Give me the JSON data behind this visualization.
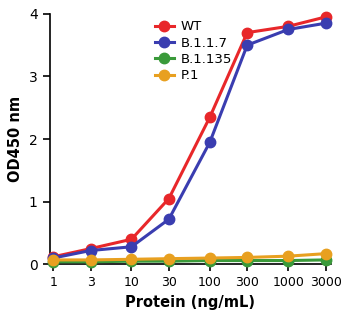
{
  "x_values": [
    1,
    3,
    10,
    30,
    100,
    300,
    1000,
    3000
  ],
  "WT": [
    0.12,
    0.25,
    0.4,
    1.05,
    2.35,
    3.7,
    3.8,
    3.95
  ],
  "B117": [
    0.1,
    0.22,
    0.28,
    0.72,
    1.95,
    3.5,
    3.75,
    3.85
  ],
  "B1135": [
    0.04,
    0.04,
    0.05,
    0.05,
    0.06,
    0.06,
    0.06,
    0.07
  ],
  "P1": [
    0.07,
    0.07,
    0.08,
    0.09,
    0.1,
    0.11,
    0.13,
    0.17
  ],
  "colors": {
    "WT": "#e8272a",
    "B117": "#3a3db0",
    "B1135": "#3a9a3a",
    "P1": "#e8a020"
  },
  "labels": {
    "WT": "WT",
    "B117": "B.1.1.7",
    "B1135": "B.1.135",
    "P1": "P.1"
  },
  "xlabel": "Protein (ng/mL)",
  "ylabel": "OD450 nm",
  "ylim": [
    0,
    4.0
  ],
  "yticks": [
    0,
    1,
    2,
    3,
    4
  ],
  "xtick_labels": [
    "1",
    "3",
    "10",
    "30",
    "100",
    "300",
    "1000",
    "3000"
  ],
  "linewidth": 2.2,
  "markersize": 7.5
}
